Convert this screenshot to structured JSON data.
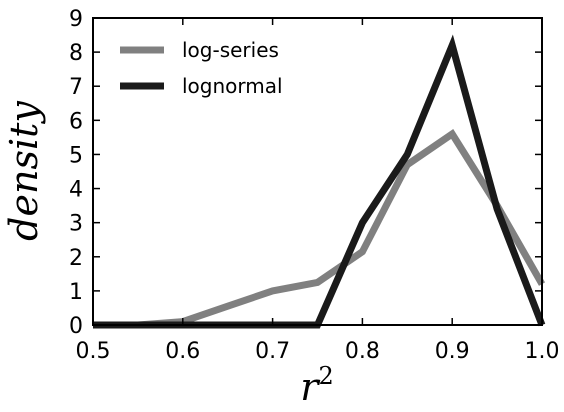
{
  "chart_data": {
    "type": "line",
    "xlabel": "r",
    "xlabel_superscript": "2",
    "ylabel": "density",
    "xlim": [
      0.5,
      1.0
    ],
    "ylim": [
      0,
      9
    ],
    "x_ticks": [
      0.5,
      0.6,
      0.7,
      0.8,
      0.9,
      1.0
    ],
    "x_tick_labels": [
      "0.5",
      "0.6",
      "0.7",
      "0.8",
      "0.9",
      "1.0"
    ],
    "y_ticks": [
      0,
      1,
      2,
      3,
      4,
      5,
      6,
      7,
      8,
      9
    ],
    "y_tick_labels": [
      "0",
      "1",
      "2",
      "3",
      "4",
      "5",
      "6",
      "7",
      "8",
      "9"
    ],
    "grid": false,
    "legend_position": "top-left",
    "series": [
      {
        "name": "log-series",
        "color": "#808080",
        "x": [
          0.5,
          0.55,
          0.6,
          0.65,
          0.7,
          0.75,
          0.8,
          0.85,
          0.9,
          0.95,
          1.0
        ],
        "y": [
          0.0,
          0.0,
          0.1,
          0.55,
          1.0,
          1.25,
          2.15,
          4.7,
          5.6,
          3.5,
          1.2
        ]
      },
      {
        "name": "lognormal",
        "color": "#1a1a1a",
        "x": [
          0.5,
          0.55,
          0.6,
          0.65,
          0.7,
          0.75,
          0.8,
          0.85,
          0.9,
          0.95,
          1.0
        ],
        "y": [
          0.0,
          0.0,
          0.0,
          0.0,
          0.0,
          0.0,
          3.0,
          5.0,
          8.2,
          3.4,
          0.0
        ]
      }
    ]
  }
}
